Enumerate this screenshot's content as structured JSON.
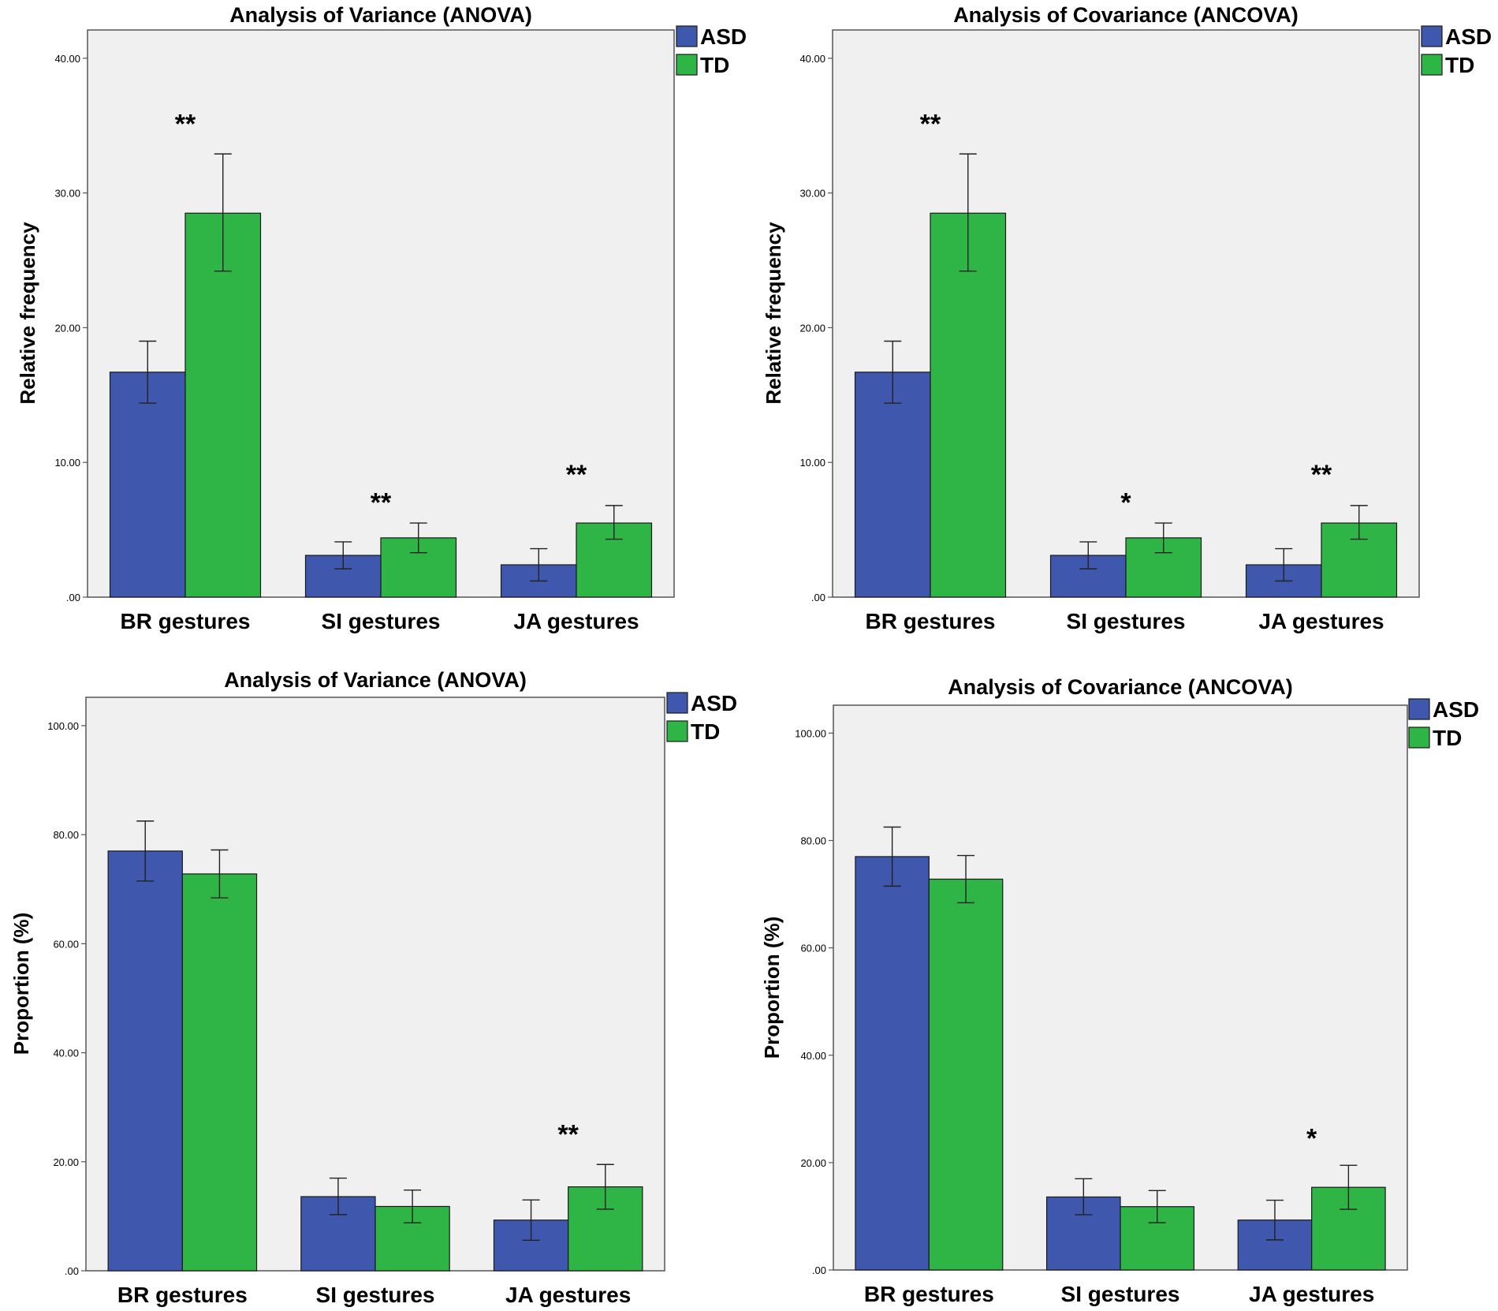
{
  "chart_data": [
    {
      "type": "bar",
      "title": "Analysis of Variance (ANOVA)",
      "xlabel": "",
      "ylabel": "Relative frequency",
      "categories": [
        "BR gestures",
        "SI gestures",
        "JA gestures"
      ],
      "series": [
        {
          "name": "ASD",
          "color": "#3f57ad",
          "values": [
            16.7,
            3.1,
            2.4
          ],
          "error_low": [
            14.4,
            2.1,
            1.2
          ],
          "error_high": [
            19.0,
            4.1,
            3.6
          ]
        },
        {
          "name": "TD",
          "color": "#2fb545",
          "values": [
            28.5,
            4.4,
            5.5
          ],
          "error_low": [
            24.2,
            3.3,
            4.3
          ],
          "error_high": [
            32.9,
            5.5,
            6.8
          ]
        }
      ],
      "yticks": [
        0,
        10,
        20,
        30,
        40
      ],
      "ytick_labels": [
        ".00",
        "10.00",
        "20.00",
        "30.00",
        "40.00"
      ],
      "ylim": [
        0,
        42.1
      ],
      "significance": [
        "**",
        "**",
        "**"
      ],
      "sig_y": [
        35.5,
        7.4,
        9.5
      ],
      "legend": "top-right outside",
      "grid": false
    },
    {
      "type": "bar",
      "title": "Analysis of Covariance (ANCOVA)",
      "xlabel": "",
      "ylabel": "Relative frequency",
      "categories": [
        "BR gestures",
        "SI gestures",
        "JA gestures"
      ],
      "series": [
        {
          "name": "ASD",
          "color": "#3f57ad",
          "values": [
            16.7,
            3.1,
            2.4
          ],
          "error_low": [
            14.4,
            2.1,
            1.2
          ],
          "error_high": [
            19.0,
            4.1,
            3.6
          ]
        },
        {
          "name": "TD",
          "color": "#2fb545",
          "values": [
            28.5,
            4.4,
            5.5
          ],
          "error_low": [
            24.2,
            3.3,
            4.3
          ],
          "error_high": [
            32.9,
            5.5,
            6.8
          ]
        }
      ],
      "yticks": [
        0,
        10,
        20,
        30,
        40
      ],
      "ytick_labels": [
        ".00",
        "10.00",
        "20.00",
        "30.00",
        "40.00"
      ],
      "ylim": [
        0,
        42.1
      ],
      "significance": [
        "**",
        "*",
        "**"
      ],
      "sig_y": [
        35.5,
        7.4,
        9.5
      ],
      "legend": "top-right outside",
      "grid": false
    },
    {
      "type": "bar",
      "title": "Analysis of Variance (ANOVA)",
      "xlabel": "",
      "ylabel": "Proportion (%)",
      "categories": [
        "BR gestures",
        "SI gestures",
        "JA gestures"
      ],
      "series": [
        {
          "name": "ASD",
          "color": "#3f57ad",
          "values": [
            77.0,
            13.6,
            9.3
          ],
          "error_low": [
            71.5,
            10.3,
            5.6
          ],
          "error_high": [
            82.5,
            17.0,
            13.0
          ]
        },
        {
          "name": "TD",
          "color": "#2fb545",
          "values": [
            72.8,
            11.8,
            15.4
          ],
          "error_low": [
            68.4,
            8.8,
            11.3
          ],
          "error_high": [
            77.2,
            14.8,
            19.5
          ]
        }
      ],
      "yticks": [
        0,
        20,
        40,
        60,
        80,
        100
      ],
      "ytick_labels": [
        ".00",
        "20.00",
        "40.00",
        "60.00",
        "80.00",
        "100.00"
      ],
      "ylim": [
        0,
        105.2
      ],
      "significance": [
        "",
        "",
        "**"
      ],
      "sig_y": [
        0,
        0,
        26.0
      ],
      "legend": "top-right outside",
      "grid": false
    },
    {
      "type": "bar",
      "title": "Analysis of Covariance (ANCOVA)",
      "xlabel": "",
      "ylabel": "Proportion (%)",
      "categories": [
        "BR gestures",
        "SI gestures",
        "JA gestures"
      ],
      "series": [
        {
          "name": "ASD",
          "color": "#3f57ad",
          "values": [
            77.0,
            13.6,
            9.3
          ],
          "error_low": [
            71.5,
            10.3,
            5.6
          ],
          "error_high": [
            82.5,
            17.0,
            13.0
          ]
        },
        {
          "name": "TD",
          "color": "#2fb545",
          "values": [
            72.8,
            11.8,
            15.4
          ],
          "error_low": [
            68.4,
            8.8,
            11.3
          ],
          "error_high": [
            77.2,
            14.8,
            19.5
          ]
        }
      ],
      "yticks": [
        0,
        20,
        40,
        60,
        80,
        100
      ],
      "ytick_labels": [
        ".00",
        "20.00",
        "40.00",
        "60.00",
        "80.00",
        "100.00"
      ],
      "ylim": [
        0,
        105.2
      ],
      "significance": [
        "",
        "",
        "*"
      ],
      "sig_y": [
        0,
        0,
        25.5
      ],
      "legend": "top-right outside",
      "grid": false
    }
  ]
}
